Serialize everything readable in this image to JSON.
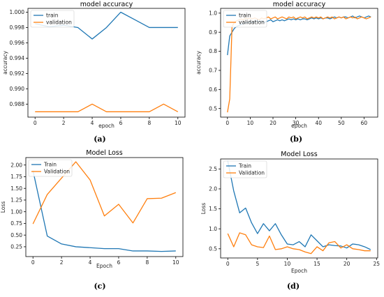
{
  "colors": {
    "train": "#1f77b4",
    "validation": "#ff7f0e"
  },
  "chart_data": [
    {
      "type": "line",
      "panel": "(a)",
      "title": "model accuracy",
      "xlabel": "epoch",
      "ylabel": "accuracy",
      "xlim": [
        -0.5,
        10.5
      ],
      "ylim": [
        0.9863,
        1.0005
      ],
      "xticks": [
        0,
        2,
        4,
        6,
        8,
        10
      ],
      "yticks": [
        0.988,
        0.99,
        0.992,
        0.994,
        0.996,
        0.998,
        1.0
      ],
      "ytick_labels": [
        "0.988",
        "0.990",
        "0.992",
        "0.994",
        "0.996",
        "0.998",
        "1.000"
      ],
      "legend": "top-left",
      "series": [
        {
          "name": "train",
          "x": [
            0,
            1,
            2,
            3,
            4,
            5,
            6,
            7,
            8,
            9,
            10
          ],
          "values": [
            0.9985,
            0.9981,
            0.9983,
            0.998,
            0.9965,
            0.998,
            1.0,
            0.999,
            0.998,
            0.998,
            0.998
          ]
        },
        {
          "name": "validation",
          "x": [
            0,
            1,
            2,
            3,
            4,
            5,
            6,
            7,
            8,
            9,
            10
          ],
          "values": [
            0.987,
            0.987,
            0.987,
            0.987,
            0.988,
            0.987,
            0.987,
            0.987,
            0.987,
            0.988,
            0.987
          ]
        }
      ]
    },
    {
      "type": "line",
      "panel": "(b)",
      "title": "model accuracy",
      "xlabel": "epoch",
      "ylabel": "accuracy",
      "xlim": [
        -3,
        66
      ],
      "ylim": [
        0.455,
        1.025
      ],
      "xticks": [
        0,
        10,
        20,
        30,
        40,
        50,
        60
      ],
      "yticks": [
        0.5,
        0.6,
        0.7,
        0.8,
        0.9,
        1.0
      ],
      "ytick_labels": [
        "0.5",
        "0.6",
        "0.7",
        "0.8",
        "0.9",
        "1.0"
      ],
      "legend": "top-left",
      "series": [
        {
          "name": "train",
          "x": [
            0,
            1,
            2,
            3,
            4,
            5,
            6,
            7,
            8,
            9,
            10,
            11,
            12,
            13,
            14,
            15,
            16,
            17,
            18,
            19,
            20,
            21,
            22,
            23,
            24,
            25,
            26,
            27,
            28,
            29,
            30,
            31,
            32,
            33,
            34,
            35,
            36,
            37,
            38,
            39,
            40,
            41,
            42,
            43,
            44,
            45,
            46,
            47,
            48,
            49,
            50,
            51,
            52,
            53,
            54,
            55,
            56,
            57,
            58,
            59,
            60,
            61,
            62,
            63
          ],
          "values": [
            0.78,
            0.88,
            0.9,
            0.92,
            0.93,
            0.935,
            0.94,
            0.945,
            0.95,
            0.95,
            0.955,
            0.95,
            0.955,
            0.96,
            0.955,
            0.96,
            0.95,
            0.955,
            0.96,
            0.965,
            0.955,
            0.96,
            0.965,
            0.96,
            0.965,
            0.96,
            0.965,
            0.97,
            0.965,
            0.97,
            0.965,
            0.97,
            0.965,
            0.97,
            0.97,
            0.965,
            0.97,
            0.975,
            0.97,
            0.975,
            0.97,
            0.975,
            0.97,
            0.975,
            0.975,
            0.97,
            0.975,
            0.98,
            0.975,
            0.98,
            0.975,
            0.98,
            0.98,
            0.975,
            0.98,
            0.985,
            0.975,
            0.98,
            0.985,
            0.98,
            0.975,
            0.98,
            0.985,
            0.98
          ]
        },
        {
          "name": "validation",
          "x": [
            0,
            1,
            2,
            3,
            4,
            5,
            6,
            7,
            8,
            9,
            10,
            11,
            12,
            13,
            14,
            15,
            16,
            17,
            18,
            19,
            20,
            21,
            22,
            23,
            24,
            25,
            26,
            27,
            28,
            29,
            30,
            31,
            32,
            33,
            34,
            35,
            36,
            37,
            38,
            39,
            40,
            41,
            42,
            43,
            44,
            45,
            46,
            47,
            48,
            49,
            50,
            51,
            52,
            53,
            54,
            55,
            56,
            57,
            58,
            59,
            60,
            61,
            62,
            63
          ],
          "values": [
            0.48,
            0.55,
            0.93,
            0.95,
            0.96,
            0.965,
            0.97,
            0.965,
            0.975,
            0.97,
            0.975,
            0.97,
            0.975,
            0.97,
            0.965,
            0.975,
            0.97,
            0.975,
            0.98,
            0.97,
            0.975,
            0.98,
            0.97,
            0.975,
            0.98,
            0.975,
            0.97,
            0.98,
            0.975,
            0.98,
            0.97,
            0.975,
            0.98,
            0.975,
            0.98,
            0.97,
            0.975,
            0.98,
            0.975,
            0.98,
            0.975,
            0.98,
            0.97,
            0.975,
            0.98,
            0.975,
            0.98,
            0.97,
            0.975,
            0.98,
            0.975,
            0.98,
            0.97,
            0.975,
            0.98,
            0.975,
            0.98,
            0.97,
            0.975,
            0.98,
            0.975,
            0.97,
            0.975,
            0.98
          ]
        }
      ]
    },
    {
      "type": "line",
      "panel": "(c)",
      "title": "Model Loss",
      "xlabel": "Epoch",
      "ylabel": "Loss",
      "xlim": [
        -0.5,
        10.5
      ],
      "ylim": [
        0.04,
        2.16
      ],
      "xticks": [
        0,
        2,
        4,
        6,
        8,
        10
      ],
      "yticks": [
        0.25,
        0.5,
        0.75,
        1.0,
        1.25,
        1.5,
        1.75,
        2.0
      ],
      "ytick_labels": [
        "0.25",
        "0.50",
        "0.75",
        "1.00",
        "1.25",
        "1.50",
        "1.75",
        "2.00"
      ],
      "legend": "top-left",
      "series": [
        {
          "name": "Train",
          "x": [
            0,
            1,
            2,
            3,
            4,
            5,
            6,
            7,
            8,
            9,
            10
          ],
          "values": [
            1.88,
            0.48,
            0.31,
            0.25,
            0.23,
            0.21,
            0.21,
            0.16,
            0.16,
            0.15,
            0.16
          ]
        },
        {
          "name": "Validation",
          "x": [
            0,
            1,
            2,
            3,
            4,
            5,
            6,
            7,
            8,
            9,
            10
          ],
          "values": [
            0.74,
            1.37,
            1.72,
            2.07,
            1.68,
            0.91,
            1.16,
            0.76,
            1.28,
            1.29,
            1.41
          ]
        }
      ]
    },
    {
      "type": "line",
      "panel": "(d)",
      "title": "Model Loss",
      "xlabel": "Epoch",
      "ylabel": "Loss",
      "xlim": [
        -1.2,
        25.2
      ],
      "ylim": [
        0.27,
        2.75
      ],
      "xticks": [
        0,
        5,
        10,
        15,
        20,
        25
      ],
      "yticks": [
        0.5,
        1.0,
        1.5,
        2.0,
        2.5
      ],
      "ytick_labels": [
        "0.5",
        "1.0",
        "1.5",
        "2.0",
        "2.5"
      ],
      "legend": "top-left",
      "series": [
        {
          "name": "Train",
          "x": [
            0,
            1,
            2,
            3,
            4,
            5,
            6,
            7,
            8,
            9,
            10,
            11,
            12,
            13,
            14,
            15,
            16,
            17,
            18,
            19,
            20,
            21,
            22,
            23,
            24
          ],
          "values": [
            2.7,
            1.95,
            1.4,
            1.52,
            1.15,
            0.88,
            1.13,
            0.95,
            1.13,
            0.85,
            0.62,
            0.6,
            0.68,
            0.55,
            0.85,
            0.7,
            0.55,
            0.6,
            0.58,
            0.57,
            0.52,
            0.62,
            0.6,
            0.55,
            0.48
          ]
        },
        {
          "name": "Validation",
          "x": [
            0,
            1,
            2,
            3,
            4,
            5,
            6,
            7,
            8,
            9,
            10,
            11,
            12,
            13,
            14,
            15,
            16,
            17,
            18,
            19,
            20,
            21,
            22,
            23,
            24
          ],
          "values": [
            0.88,
            0.55,
            0.9,
            0.85,
            0.6,
            0.55,
            0.53,
            0.82,
            0.48,
            0.5,
            0.55,
            0.5,
            0.48,
            0.42,
            0.38,
            0.55,
            0.45,
            0.65,
            0.68,
            0.52,
            0.6,
            0.5,
            0.48,
            0.45,
            0.45
          ]
        }
      ]
    }
  ]
}
